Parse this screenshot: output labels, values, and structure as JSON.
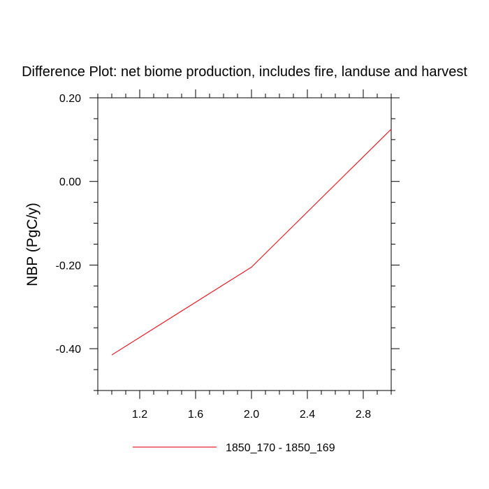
{
  "chart_data": {
    "type": "line",
    "title": "Difference Plot: net biome production, includes fire, landuse and harvest",
    "xlabel": "",
    "ylabel": "NBP  (PgC/y)",
    "xlim": [
      0.9,
      3.0
    ],
    "ylim": [
      -0.5,
      0.2
    ],
    "x_ticks": [
      1.2,
      1.6,
      2.0,
      2.4,
      2.8
    ],
    "x_tick_labels": [
      "1.2",
      "1.6",
      "2.0",
      "2.4",
      "2.8"
    ],
    "y_ticks": [
      -0.4,
      -0.2,
      0.0,
      0.2
    ],
    "y_tick_labels": [
      "-0.40",
      "-0.20",
      "0.00",
      "0.20"
    ],
    "x_minor_step": 0.1,
    "y_minor_step": 0.05,
    "grid": false,
    "legend_position": "bottom-center",
    "series": [
      {
        "name": "1850_170 - 1850_169",
        "color": "#e8202a",
        "x": [
          1.0,
          2.0,
          3.0
        ],
        "y": [
          -0.415,
          -0.205,
          0.125
        ]
      }
    ]
  }
}
